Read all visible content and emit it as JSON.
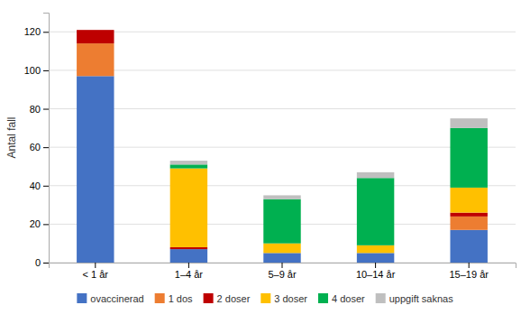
{
  "chart_data": {
    "type": "bar",
    "stacked": true,
    "ylabel": "Antal fall",
    "categories": [
      "< 1 år",
      "1–4 år",
      "5–9 år",
      "10–14 år",
      "15–19 år"
    ],
    "series": [
      {
        "name": "ovaccinerad",
        "color": "#4472C4",
        "values": [
          97,
          7,
          5,
          5,
          17
        ]
      },
      {
        "name": "1 dos",
        "color": "#ED7D31",
        "values": [
          17,
          0,
          0,
          0,
          7
        ]
      },
      {
        "name": "2 doser",
        "color": "#BE0000",
        "values": [
          7,
          1,
          0,
          0,
          2
        ]
      },
      {
        "name": "3 doser",
        "color": "#FFC000",
        "values": [
          0,
          41,
          5,
          4,
          13
        ]
      },
      {
        "name": "4 doser",
        "color": "#00B050",
        "values": [
          0,
          2,
          23,
          35,
          31
        ]
      },
      {
        "name": "uppgift saknas",
        "color": "#BFBFBF",
        "values": [
          0,
          2,
          2,
          3,
          5
        ]
      }
    ],
    "ylim": [
      0,
      130
    ],
    "yticks": [
      0,
      20,
      40,
      60,
      80,
      100,
      120
    ],
    "grid": true,
    "legend": "bottom"
  }
}
